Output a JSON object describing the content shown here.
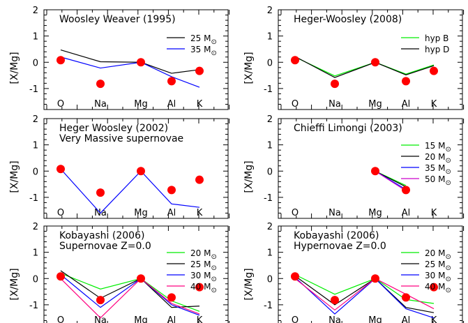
{
  "figure": {
    "ylabel": "[X/Mg]",
    "ylim": [
      -1.8,
      2.0
    ],
    "yticks": [
      -1,
      0,
      1,
      2
    ],
    "categories": [
      "O",
      "Na",
      "Mg",
      "Al",
      "K"
    ]
  },
  "chart_data": [
    {
      "type": "line",
      "title": "Woosley Weaver (1995)",
      "subtitle": "",
      "categories": [
        "O",
        "Na",
        "Mg",
        "Al",
        "K"
      ],
      "observed": [
        0.08,
        -0.82,
        0.0,
        -0.72,
        -0.33
      ],
      "series": [
        {
          "name": "25 M",
          "sub": "⊙",
          "color": "#000000",
          "values": [
            0.47,
            0.02,
            0.0,
            -0.42,
            -0.28
          ]
        },
        {
          "name": "35 M",
          "sub": "⊙",
          "color": "#0000ff",
          "values": [
            0.2,
            -0.22,
            0.0,
            -0.55,
            -0.95
          ]
        }
      ],
      "ylabel": "[X/Mg]",
      "ylim": [
        -1.8,
        2.0
      ]
    },
    {
      "type": "line",
      "title": "Heger-Woosley (2008)",
      "subtitle": "",
      "categories": [
        "O",
        "Na",
        "Mg",
        "Al",
        "K"
      ],
      "observed": [
        0.08,
        -0.82,
        0.0,
        -0.72,
        -0.33
      ],
      "series": [
        {
          "name": "hyp B",
          "sub": "",
          "color": "#00ee00",
          "values": [
            0.2,
            -0.52,
            0.0,
            -0.45,
            -0.1
          ]
        },
        {
          "name": "hyp D",
          "sub": "",
          "color": "#000000",
          "values": [
            0.22,
            -0.58,
            0.0,
            -0.48,
            -0.13
          ]
        }
      ],
      "ylabel": "[X/Mg]",
      "ylim": [
        -1.8,
        2.0
      ]
    },
    {
      "type": "line",
      "title": "Heger Woosley (2002)",
      "subtitle": "Very Massive supernovae",
      "categories": [
        "O",
        "Na",
        "Mg",
        "Al",
        "K"
      ],
      "observed": [
        0.08,
        -0.82,
        0.0,
        -0.72,
        -0.33
      ],
      "series": [
        {
          "name": "",
          "sub": "",
          "color": "#0000ff",
          "values": [
            0.08,
            -1.6,
            0.0,
            -1.25,
            -1.38
          ]
        }
      ],
      "ylabel": "[X/Mg]",
      "ylim": [
        -1.8,
        2.0
      ]
    },
    {
      "type": "line",
      "title": "Chieffi Limongi (2003)",
      "subtitle": "",
      "categories": [
        "O",
        "Na",
        "Mg",
        "Al",
        "K"
      ],
      "observed": [
        null,
        null,
        0.0,
        -0.72,
        null
      ],
      "series": [
        {
          "name": "15 M",
          "sub": "⊙",
          "color": "#00ee00",
          "values": [
            null,
            null,
            0.0,
            -0.55,
            null
          ]
        },
        {
          "name": "20 M",
          "sub": "⊙",
          "color": "#000000",
          "values": [
            null,
            null,
            0.0,
            -0.6,
            null
          ]
        },
        {
          "name": "35 M",
          "sub": "⊙",
          "color": "#0000ff",
          "values": [
            null,
            null,
            0.0,
            -0.7,
            null
          ]
        },
        {
          "name": "50 M",
          "sub": "⊙",
          "color": "#cc00cc",
          "values": [
            null,
            null,
            0.0,
            -0.75,
            null
          ]
        }
      ],
      "ylabel": "[X/Mg]",
      "ylim": [
        -1.8,
        2.0
      ]
    },
    {
      "type": "line",
      "title": "Kobayashi (2006)",
      "subtitle": "Supernovae Z=0.0",
      "categories": [
        "O",
        "Na",
        "Mg",
        "Al",
        "K"
      ],
      "observed": [
        0.08,
        -0.82,
        0.0,
        -0.72,
        -0.33
      ],
      "series": [
        {
          "name": "20 M",
          "sub": "⊙",
          "color": "#00ee00",
          "values": [
            0.2,
            -0.4,
            0.0,
            -0.85,
            -1.25
          ]
        },
        {
          "name": "25 M",
          "sub": "⊙",
          "color": "#000000",
          "values": [
            0.3,
            -0.75,
            0.0,
            -1.1,
            -1.05
          ]
        },
        {
          "name": "30 M",
          "sub": "⊙",
          "color": "#0000ff",
          "values": [
            0.15,
            -1.1,
            0.0,
            -1.0,
            -1.4
          ]
        },
        {
          "name": "40 M",
          "sub": "⊙",
          "color": "#ff0080",
          "values": [
            0.0,
            -1.5,
            0.0,
            -0.95,
            -1.35
          ]
        }
      ],
      "ylabel": "[X/Mg]",
      "ylim": [
        -1.8,
        2.0
      ]
    },
    {
      "type": "line",
      "title": "Kobayashi (2006)",
      "subtitle": "Hypernovae Z=0.0",
      "categories": [
        "O",
        "Na",
        "Mg",
        "Al",
        "K"
      ],
      "observed": [
        0.08,
        -0.82,
        0.0,
        -0.72,
        -0.33
      ],
      "series": [
        {
          "name": "20 M",
          "sub": "⊙",
          "color": "#00ee00",
          "values": [
            0.15,
            -0.6,
            0.0,
            -0.8,
            -0.95
          ]
        },
        {
          "name": "25 M",
          "sub": "⊙",
          "color": "#000000",
          "values": [
            0.1,
            -1.0,
            0.0,
            -1.1,
            -1.3
          ]
        },
        {
          "name": "30 M",
          "sub": "⊙",
          "color": "#0000ff",
          "values": [
            0.05,
            -1.35,
            0.0,
            -1.15,
            -1.5
          ]
        },
        {
          "name": "40 M",
          "sub": "⊙",
          "color": "#ff0080",
          "values": [
            0.0,
            -1.2,
            0.0,
            -0.6,
            -1.15
          ]
        }
      ],
      "ylabel": "[X/Mg]",
      "ylim": [
        -1.8,
        2.0
      ]
    }
  ]
}
